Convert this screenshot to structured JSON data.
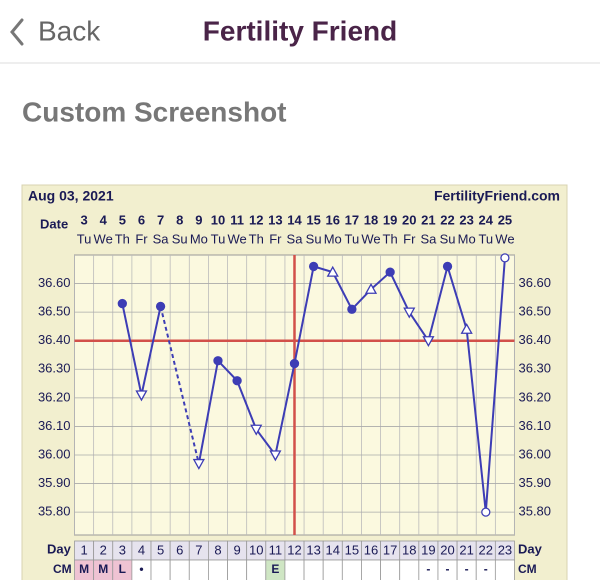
{
  "header": {
    "back": "Back",
    "title": "Fertility Friend"
  },
  "section_title": "Custom Screenshot",
  "chart_data": {
    "type": "line",
    "title": "Aug 03, 2021",
    "brand": "FertilityFriend.com",
    "date_label": "Date",
    "day_label": "Day",
    "cm_label": "CM",
    "x": [
      1,
      2,
      3,
      4,
      5,
      6,
      7,
      8,
      9,
      10,
      11,
      12,
      13,
      14,
      15,
      16,
      17,
      18,
      19,
      20,
      21,
      22,
      23
    ],
    "dates": [
      3,
      4,
      5,
      6,
      7,
      8,
      9,
      10,
      11,
      12,
      13,
      14,
      15,
      16,
      17,
      18,
      19,
      20,
      21,
      22,
      23,
      24,
      25
    ],
    "weekdays": [
      "Tu",
      "We",
      "Th",
      "Fr",
      "Sa",
      "Su",
      "Mo",
      "Tu",
      "We",
      "Th",
      "Fr",
      "Sa",
      "Su",
      "Mo",
      "Tu",
      "We",
      "Th",
      "Fr",
      "Sa",
      "Su",
      "Mo",
      "Tu",
      "We"
    ],
    "values": [
      null,
      null,
      36.53,
      36.21,
      36.52,
      null,
      35.97,
      36.33,
      36.26,
      36.09,
      36.0,
      36.32,
      36.66,
      36.64,
      36.51,
      36.58,
      36.64,
      36.5,
      36.4,
      36.66,
      36.44,
      35.8,
      36.69
    ],
    "markers": [
      null,
      null,
      "dot",
      "tri-down",
      "dot",
      null,
      "tri-down",
      "dot",
      "dot",
      "tri-down",
      "tri-down",
      "dot",
      "dot",
      "tri-up",
      "dot",
      "tri-up",
      "dot",
      "tri-down",
      "tri-down",
      "dot",
      "tri-up",
      "circle-open",
      "circle-open"
    ],
    "cm": [
      "M",
      "M",
      "L",
      "•",
      null,
      null,
      null,
      null,
      null,
      null,
      "E",
      null,
      null,
      null,
      null,
      null,
      null,
      null,
      "-",
      "-",
      "-",
      "-",
      null
    ],
    "cm_colors": {
      "M": "#efc3d3",
      "L": "#efc3d3",
      "E": "#cfe6c4"
    },
    "color": "#3d3db5",
    "gap_style": "dashed",
    "coverline": 36.4,
    "ovulation_day": 12,
    "reference_color": "#d2504a",
    "ylim": [
      35.72,
      36.7
    ],
    "yticks": [
      {
        "value": 35.8,
        "label": "35.80"
      },
      {
        "value": 35.9,
        "label": "35.90"
      },
      {
        "value": 36.0,
        "label": "36.00"
      },
      {
        "value": 36.1,
        "label": "36.10"
      },
      {
        "value": 36.2,
        "label": "36.20"
      },
      {
        "value": 36.3,
        "label": "36.30"
      },
      {
        "value": 36.4,
        "label": "36.40"
      },
      {
        "value": 36.5,
        "label": "36.50"
      },
      {
        "value": 36.6,
        "label": "36.60"
      }
    ],
    "grid": true
  }
}
